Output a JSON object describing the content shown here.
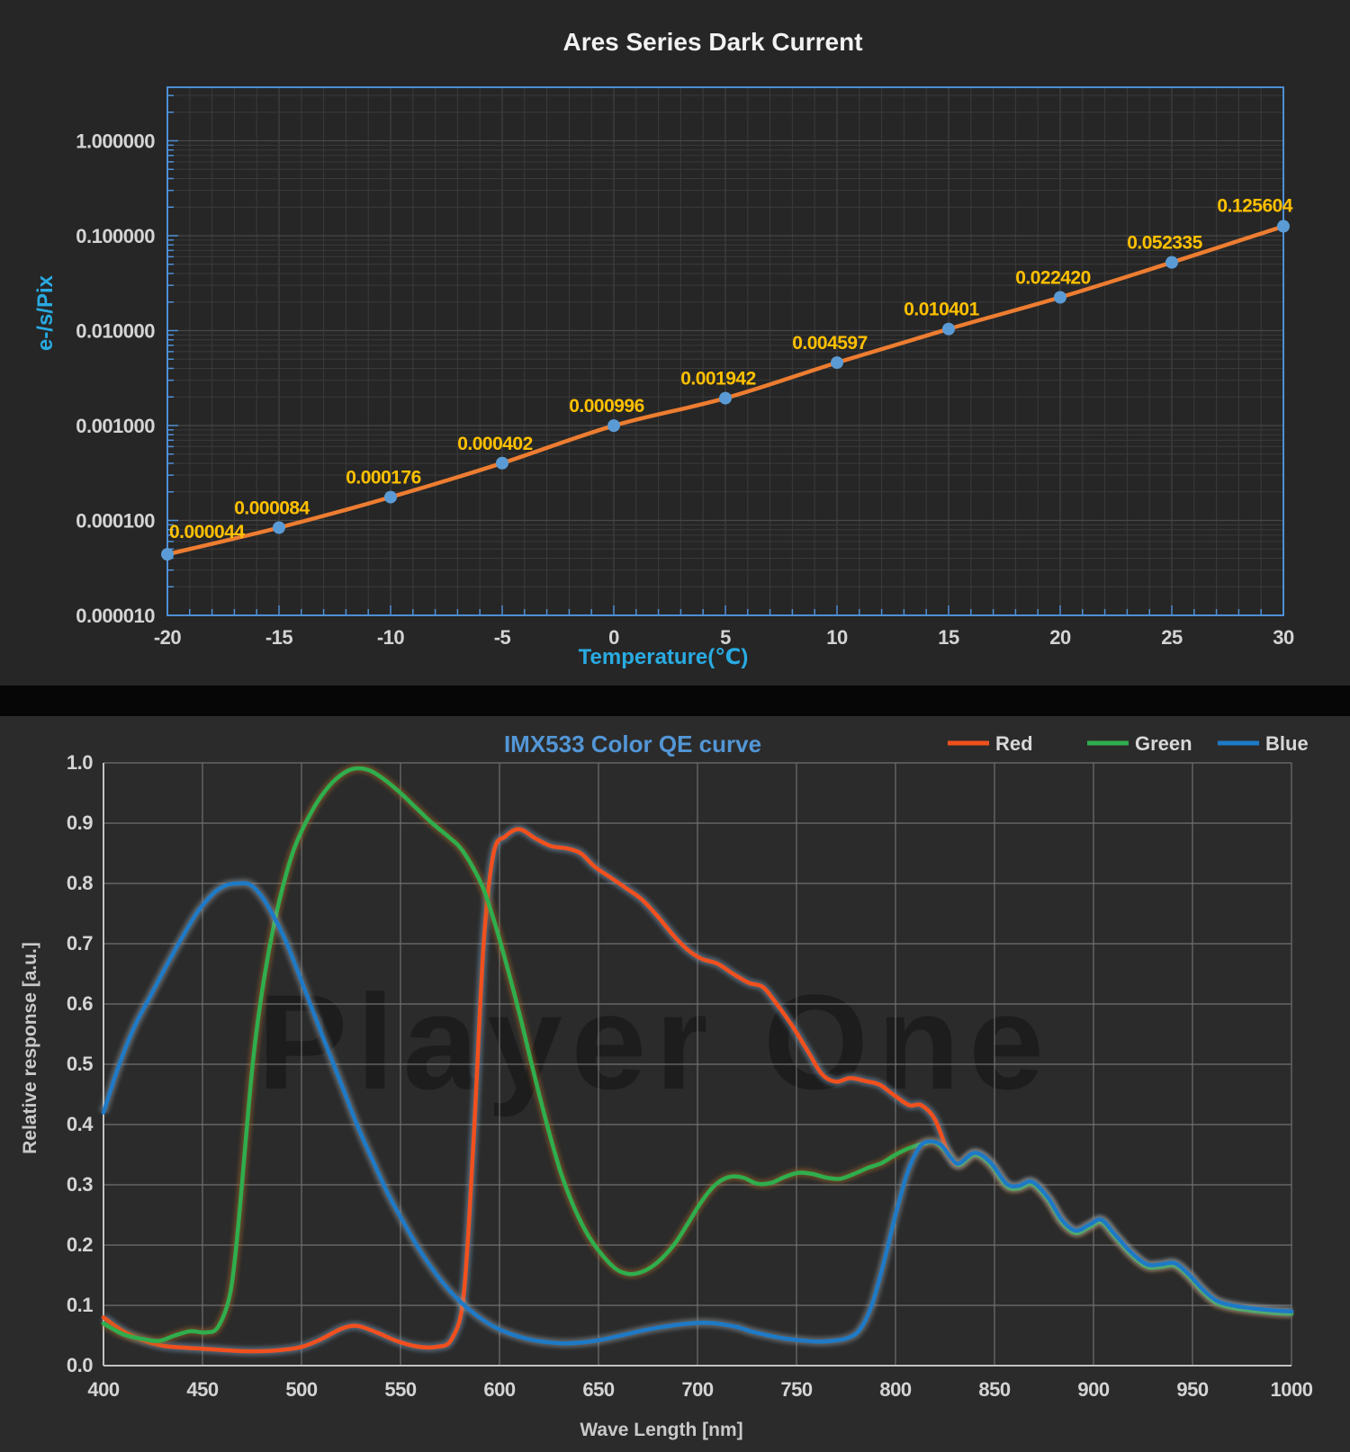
{
  "page": {
    "background": "#262626",
    "bottom_background": "#2B2B2B",
    "separator_color": "#060606"
  },
  "chart_data": [
    {
      "type": "line",
      "title": "Ares Series Dark Current",
      "xlabel": "Temperature(℃)",
      "ylabel": "e-/s/Pix",
      "y_scale": "log10",
      "xlim": [
        -20,
        30
      ],
      "ylim": [
        1e-05,
        3.6
      ],
      "grid": true,
      "x": [
        -20,
        -15,
        -10,
        -5,
        0,
        5,
        10,
        15,
        20,
        25,
        30
      ],
      "values": [
        4.4e-05,
        8.4e-05,
        0.000176,
        0.000402,
        0.000996,
        0.001942,
        0.004597,
        0.010401,
        0.02242,
        0.052335,
        0.125604
      ],
      "point_labels": [
        "0.000044",
        "0.000084",
        "0.000176",
        "0.000402",
        "0.000996",
        "0.001942",
        "0.004597",
        "0.010401",
        "0.022420",
        "0.052335",
        "0.125604"
      ],
      "x_ticks": [
        "-20",
        "-15",
        "-10",
        "-5",
        "0",
        "5",
        "10",
        "15",
        "20",
        "25",
        "30"
      ],
      "y_ticks": [
        "1.000000",
        "0.100000",
        "0.010000",
        "0.001000",
        "0.000100",
        "0.000010"
      ],
      "colors": {
        "line": "#ED7D31",
        "marker": "#5B9BD5",
        "point_label": "#FFC000",
        "axis": "#4E8FD5",
        "axis_title": "#29ABE2",
        "tick_label": "#D4D4D4",
        "title": "#F2F2F2",
        "grid": "#3A3A3A",
        "grid_major": "#474747"
      }
    },
    {
      "type": "line",
      "title": "IMX533 Color QE curve",
      "xlabel": "Wave Length [nm]",
      "ylabel": "Relative response [a.u.]",
      "watermark": "Player One",
      "xlim": [
        400,
        1000
      ],
      "ylim": [
        0,
        1
      ],
      "grid": true,
      "legend_position": "top-right",
      "x_ticks": [
        "400",
        "450",
        "500",
        "550",
        "600",
        "650",
        "700",
        "750",
        "800",
        "850",
        "900",
        "950",
        "1000"
      ],
      "y_ticks": [
        "1.0",
        "0.9",
        "0.8",
        "0.7",
        "0.6",
        "0.5",
        "0.4",
        "0.3",
        "0.2",
        "0.1",
        "0.0"
      ],
      "legend": [
        {
          "label": "Red",
          "color": "#F1501E"
        },
        {
          "label": "Green",
          "color": "#2FAE4D"
        },
        {
          "label": "Blue",
          "color": "#1E7AC6"
        }
      ],
      "series": [
        {
          "name": "Red",
          "color": "#F1501E",
          "halo": "#7FA4C4",
          "x": [
            400,
            410,
            420,
            430,
            440,
            450,
            460,
            470,
            480,
            490,
            500,
            510,
            520,
            528,
            538,
            548,
            558,
            568,
            576,
            582,
            587,
            592,
            597,
            603,
            610,
            618,
            626,
            634,
            641,
            648,
            656,
            664,
            672,
            680,
            688,
            695,
            702,
            710,
            718,
            726,
            733,
            740,
            748,
            756,
            763,
            770,
            777,
            785,
            792,
            800,
            807,
            813,
            820,
            827,
            832,
            840,
            848,
            856,
            862,
            869,
            877,
            884,
            891,
            898,
            904,
            911,
            919,
            927,
            934,
            941,
            948,
            955,
            962,
            970,
            978,
            986,
            993,
            1000
          ],
          "values": [
            0.08,
            0.057,
            0.042,
            0.033,
            0.03,
            0.028,
            0.026,
            0.024,
            0.024,
            0.026,
            0.031,
            0.044,
            0.061,
            0.066,
            0.055,
            0.041,
            0.032,
            0.031,
            0.045,
            0.12,
            0.38,
            0.7,
            0.85,
            0.878,
            0.89,
            0.875,
            0.862,
            0.858,
            0.85,
            0.828,
            0.81,
            0.792,
            0.773,
            0.745,
            0.713,
            0.69,
            0.675,
            0.667,
            0.65,
            0.635,
            0.628,
            0.6,
            0.563,
            0.52,
            0.483,
            0.471,
            0.477,
            0.472,
            0.466,
            0.447,
            0.432,
            0.432,
            0.408,
            0.35,
            0.333,
            0.352,
            0.335,
            0.3,
            0.296,
            0.303,
            0.277,
            0.24,
            0.222,
            0.232,
            0.24,
            0.215,
            0.186,
            0.166,
            0.166,
            0.168,
            0.15,
            0.125,
            0.106,
            0.098,
            0.094,
            0.091,
            0.089,
            0.088
          ]
        },
        {
          "name": "Green",
          "color": "#2FAE4D",
          "halo": "#A86A28",
          "x": [
            400,
            410,
            420,
            428,
            436,
            444,
            452,
            458,
            464,
            468,
            472,
            476,
            481,
            486,
            491,
            496,
            502,
            510,
            518,
            526,
            534,
            542,
            550,
            558,
            566,
            574,
            580,
            586,
            592,
            598,
            604,
            610,
            617,
            624,
            631,
            638,
            645,
            652,
            659,
            666,
            673,
            680,
            688,
            695,
            702,
            709,
            716,
            723,
            730,
            737,
            744,
            751,
            758,
            765,
            772,
            779,
            786,
            793,
            800,
            807,
            814,
            820,
            827,
            832,
            840,
            848,
            856,
            862,
            869,
            877,
            884,
            891,
            898,
            904,
            911,
            919,
            927,
            934,
            941,
            948,
            955,
            962,
            970,
            978,
            986,
            993,
            1000
          ],
          "values": [
            0.07,
            0.052,
            0.044,
            0.041,
            0.05,
            0.057,
            0.055,
            0.065,
            0.12,
            0.23,
            0.38,
            0.52,
            0.64,
            0.73,
            0.8,
            0.855,
            0.9,
            0.945,
            0.975,
            0.99,
            0.988,
            0.972,
            0.95,
            0.925,
            0.9,
            0.878,
            0.86,
            0.83,
            0.79,
            0.73,
            0.66,
            0.585,
            0.49,
            0.4,
            0.32,
            0.26,
            0.215,
            0.183,
            0.16,
            0.152,
            0.157,
            0.172,
            0.2,
            0.235,
            0.272,
            0.3,
            0.313,
            0.312,
            0.302,
            0.303,
            0.313,
            0.32,
            0.318,
            0.312,
            0.31,
            0.318,
            0.328,
            0.336,
            0.35,
            0.361,
            0.368,
            0.37,
            0.35,
            0.333,
            0.35,
            0.333,
            0.298,
            0.294,
            0.301,
            0.275,
            0.238,
            0.22,
            0.23,
            0.238,
            0.213,
            0.184,
            0.164,
            0.164,
            0.166,
            0.148,
            0.123,
            0.104,
            0.096,
            0.092,
            0.089,
            0.087,
            0.086
          ]
        },
        {
          "name": "Blue",
          "color": "#1E7AC6",
          "halo": "#96A2AC",
          "x": [
            400,
            408,
            416,
            424,
            432,
            440,
            448,
            456,
            462,
            468,
            474,
            480,
            486,
            492,
            498,
            505,
            512,
            520,
            528,
            536,
            544,
            552,
            560,
            568,
            576,
            584,
            592,
            600,
            608,
            616,
            624,
            632,
            640,
            648,
            656,
            664,
            672,
            680,
            688,
            696,
            704,
            712,
            720,
            728,
            736,
            744,
            752,
            760,
            768,
            776,
            782,
            788,
            794,
            800,
            806,
            812,
            817,
            823,
            828,
            832,
            840,
            848,
            856,
            862,
            869,
            877,
            884,
            891,
            898,
            904,
            911,
            919,
            927,
            934,
            941,
            948,
            955,
            962,
            970,
            978,
            986,
            993,
            1000
          ],
          "values": [
            0.42,
            0.5,
            0.565,
            0.615,
            0.665,
            0.712,
            0.755,
            0.785,
            0.797,
            0.8,
            0.798,
            0.778,
            0.745,
            0.705,
            0.655,
            0.595,
            0.535,
            0.468,
            0.4,
            0.34,
            0.283,
            0.235,
            0.19,
            0.152,
            0.12,
            0.095,
            0.075,
            0.06,
            0.05,
            0.043,
            0.039,
            0.037,
            0.038,
            0.041,
            0.046,
            0.052,
            0.058,
            0.063,
            0.067,
            0.07,
            0.071,
            0.069,
            0.064,
            0.056,
            0.05,
            0.045,
            0.042,
            0.04,
            0.041,
            0.046,
            0.06,
            0.1,
            0.17,
            0.25,
            0.32,
            0.362,
            0.372,
            0.366,
            0.345,
            0.335,
            0.353,
            0.337,
            0.302,
            0.298,
            0.305,
            0.279,
            0.242,
            0.224,
            0.234,
            0.242,
            0.217,
            0.188,
            0.168,
            0.168,
            0.17,
            0.152,
            0.127,
            0.108,
            0.1,
            0.096,
            0.093,
            0.091,
            0.09
          ]
        }
      ],
      "colors": {
        "grid": "#707070",
        "axis": "#C2C2C2",
        "tick_label": "#D4D4D4",
        "title": "#5296D6",
        "axis_title": "#C9C9C9",
        "legend_label": "#D8D8D8",
        "watermark": "#1D1D1D"
      }
    }
  ]
}
